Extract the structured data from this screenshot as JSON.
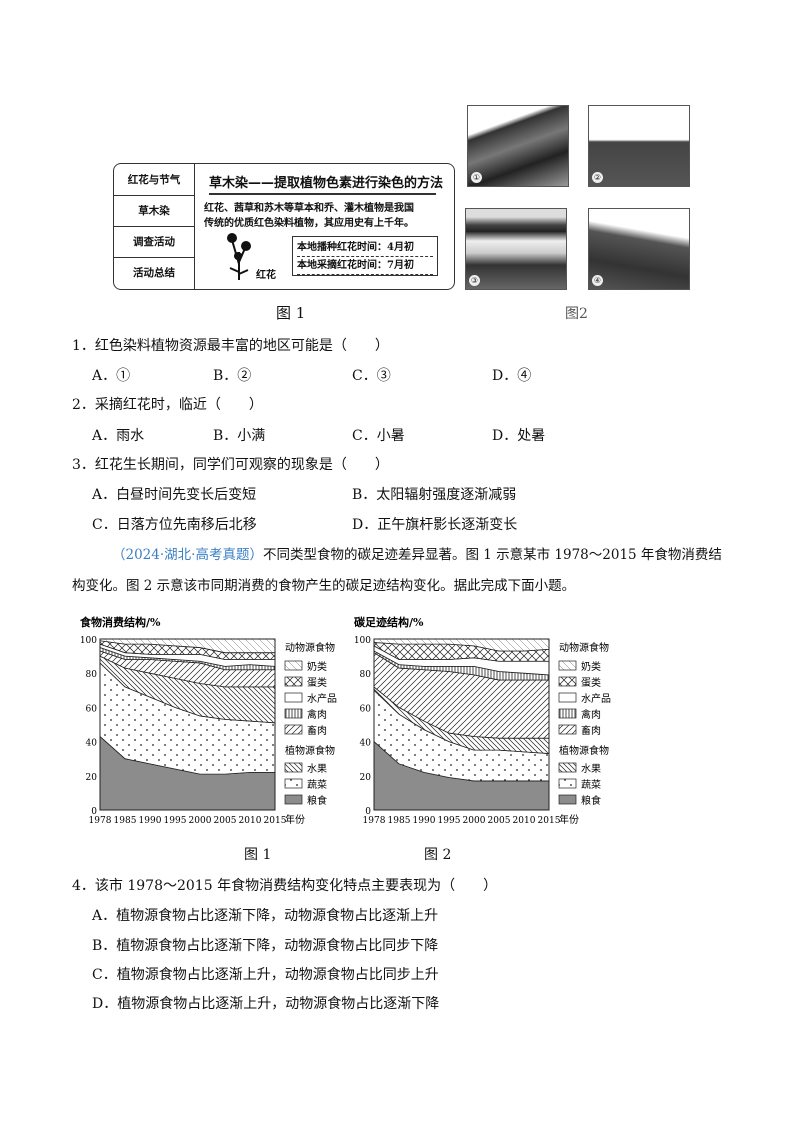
{
  "figure1": {
    "tabs": [
      "红花与节气",
      "草木染",
      "调查活动",
      "活动总结"
    ],
    "heading": "草木染——提取植物色素进行染色的方法",
    "body_lines": [
      "红花、茜草和苏木等草本和乔、灌木植物是我国",
      "传统的优质红色染料植物，其应用史有上千年。"
    ],
    "flower_label": "红花",
    "notes": [
      "本地播种红花时间：4月初",
      "本地采摘红花时间：7月初"
    ],
    "caption": "图 1"
  },
  "figure2": {
    "photo_labels": [
      "①",
      "②",
      "③",
      "④"
    ],
    "caption": "图2"
  },
  "questions": [
    {
      "stem": "1．红色染料植物资源最丰富的地区可能是（　　）",
      "options": [
        "A．①",
        "B．②",
        "C．③",
        "D．④"
      ]
    },
    {
      "stem": "2．采摘红花时，临近（　　）",
      "options": [
        "A．雨水",
        "B．小满",
        "C．小暑",
        "D．处暑"
      ]
    },
    {
      "stem": "3．红花生长期间，同学们可观察的现象是（　　）",
      "options": [
        "A．白昼时间先变长后变短",
        "B．太阳辐射强度逐渐减弱",
        "C．日落方位先南移后北移",
        "D．正午旗杆影长逐渐变长"
      ]
    }
  ],
  "intro": {
    "source": "（2024·湖北·高考真题）",
    "line1": "不同类型食物的碳足迹差异显著。图 1 示意某市 1978～2015 年食物消费结",
    "line2": "构变化。图 2 示意该市同期消费的食物产生的碳足迹结构变化。据此完成下面小题。"
  },
  "chart_captions": [
    "图 1",
    "图 2"
  ],
  "question4": {
    "stem": "4．该市 1978～2015 年食物消费结构变化特点主要表现为（　　）",
    "options": [
      "A．植物源食物占比逐渐下降，动物源食物占比逐渐上升",
      "B．植物源食物占比逐渐下降，动物源食物占比同步下降",
      "C．植物源食物占比逐渐上升，动物源食物占比同步上升",
      "D．植物源食物占比逐渐上升，动物源食物占比逐渐下降"
    ]
  },
  "colors": {
    "source_tag": "#3a7fc4",
    "grain_fill": "#8c8c8c"
  },
  "chart_data": [
    {
      "type": "area",
      "stacked": true,
      "title": "食物消费结构/%",
      "xlabel": "年份",
      "ylim": [
        0,
        100
      ],
      "yticks": [
        "0",
        "20",
        "40",
        "60",
        "80",
        "100"
      ],
      "x": [
        "1978",
        "1985",
        "1990",
        "1995",
        "2000",
        "2005",
        "2010",
        "2015"
      ],
      "legend_groups": [
        "动物源食物",
        "植物源食物"
      ],
      "series": [
        {
          "name": "粮食",
          "group": "植物源食物",
          "values": [
            43,
            30,
            27,
            24,
            21,
            21,
            22,
            22
          ]
        },
        {
          "name": "蔬菜",
          "group": "植物源食物",
          "values": [
            43,
            42,
            39,
            36,
            34,
            32,
            30,
            29
          ]
        },
        {
          "name": "水果",
          "group": "植物源食物",
          "values": [
            4,
            11,
            14,
            17,
            19,
            19,
            20,
            21
          ]
        },
        {
          "name": "畜肉",
          "group": "动物源食物",
          "values": [
            3,
            5,
            8,
            10,
            12,
            10,
            10,
            10
          ]
        },
        {
          "name": "禽肉",
          "group": "动物源食物",
          "values": [
            2,
            2,
            1,
            1,
            1,
            2,
            3,
            2
          ]
        },
        {
          "name": "水产品",
          "group": "动物源食物",
          "values": [
            2,
            2,
            2,
            3,
            4,
            4,
            3,
            4
          ]
        },
        {
          "name": "蛋类",
          "group": "动物源食物",
          "values": [
            2,
            5,
            6,
            5,
            4,
            4,
            4,
            4
          ]
        },
        {
          "name": "奶类",
          "group": "动物源食物",
          "values": [
            1,
            3,
            3,
            4,
            5,
            8,
            8,
            8
          ]
        }
      ]
    },
    {
      "type": "area",
      "stacked": true,
      "title": "碳足迹结构/%",
      "xlabel": "年份",
      "ylim": [
        0,
        100
      ],
      "yticks": [
        "0",
        "20",
        "40",
        "60",
        "80",
        "100"
      ],
      "x": [
        "1978",
        "1985",
        "1990",
        "1995",
        "2000",
        "2005",
        "2010",
        "2015"
      ],
      "legend_groups": [
        "动物源食物",
        "植物源食物"
      ],
      "series": [
        {
          "name": "粮食",
          "group": "植物源食物",
          "values": [
            40,
            27,
            22,
            19,
            17,
            17,
            17,
            17
          ]
        },
        {
          "name": "蔬菜",
          "group": "植物源食物",
          "values": [
            30,
            29,
            25,
            21,
            18,
            18,
            17,
            16
          ]
        },
        {
          "name": "水果",
          "group": "植物源食物",
          "values": [
            2,
            4,
            5,
            5,
            8,
            7,
            8,
            9
          ]
        },
        {
          "name": "畜肉",
          "group": "动物源食物",
          "values": [
            20,
            23,
            30,
            36,
            36,
            34,
            34,
            34
          ]
        },
        {
          "name": "禽肉",
          "group": "动物源食物",
          "values": [
            1,
            2,
            2,
            3,
            5,
            5,
            4,
            3
          ]
        },
        {
          "name": "水产品",
          "group": "动物源食物",
          "values": [
            3,
            3,
            4,
            4,
            5,
            6,
            7,
            8
          ]
        },
        {
          "name": "蛋类",
          "group": "动物源食物",
          "values": [
            2,
            9,
            9,
            9,
            7,
            6,
            6,
            7
          ]
        },
        {
          "name": "奶类",
          "group": "动物源食物",
          "values": [
            2,
            3,
            3,
            3,
            4,
            7,
            7,
            6
          ]
        }
      ]
    }
  ]
}
